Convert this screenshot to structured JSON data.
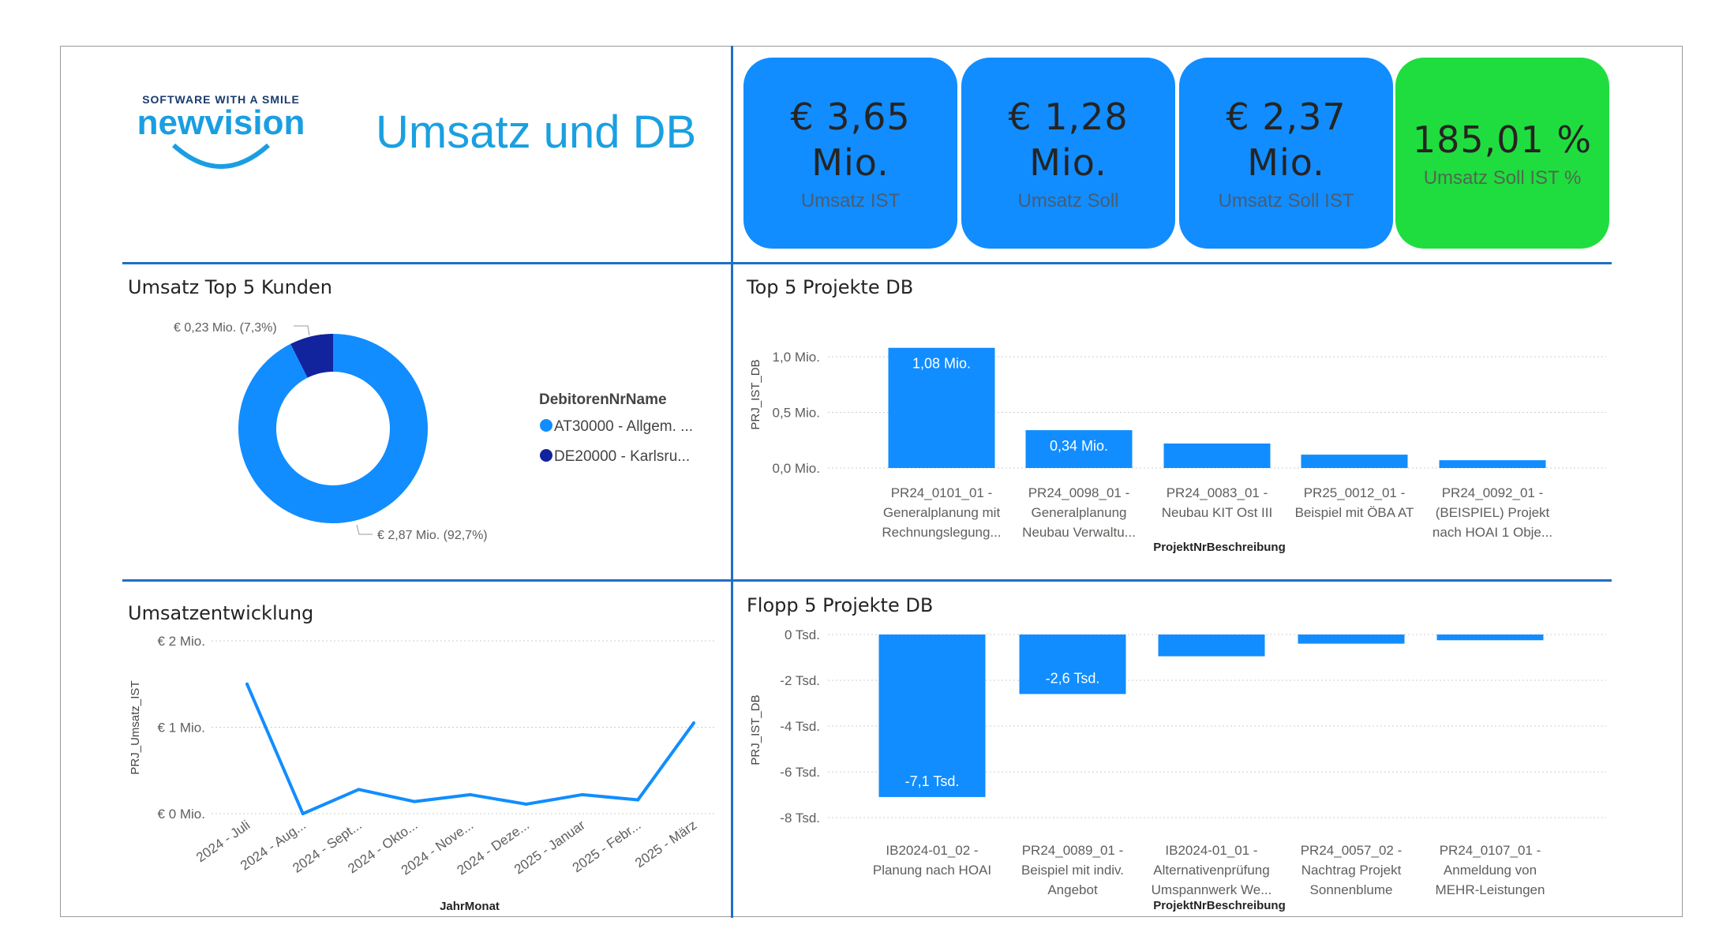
{
  "logo": {
    "tagline": "SOFTWARE WITH A SMILE",
    "brand": "newvision"
  },
  "header": {
    "title": "Umsatz und DB"
  },
  "kpis": [
    {
      "value_line1": "€ 3,65",
      "value_line2": "Mio.",
      "label": "Umsatz IST",
      "color": "#118dff"
    },
    {
      "value_line1": "€ 1,28",
      "value_line2": "Mio.",
      "label": "Umsatz Soll",
      "color": "#118dff"
    },
    {
      "value_line1": "€ 2,37",
      "value_line2": "Mio.",
      "label": "Umsatz Soll IST",
      "color": "#118dff"
    },
    {
      "value_line1": "185,01 %",
      "value_line2": "",
      "label": "Umsatz Soll IST %",
      "color": "#1fdd3e"
    }
  ],
  "chart_data": [
    {
      "type": "pie",
      "title": "Umsatz Top 5 Kunden",
      "legend_title": "DebitorenNrName",
      "legend_placement": "right",
      "slices": [
        {
          "name": "AT30000 - Allgem. ...",
          "value": 2.87,
          "label": "€ 2,87 Mio. (92,7%)",
          "color": "#118dff"
        },
        {
          "name": "DE20000 - Karlsru...",
          "value": 0.23,
          "label": "€ 0,23 Mio. (7,3%)",
          "color": "#12239e"
        }
      ]
    },
    {
      "type": "bar",
      "title": "Top 5 Projekte DB",
      "xlabel": "ProjektNrBeschreibung",
      "ylabel": "PRJ_IST_DB",
      "ylim": [
        0,
        1.0
      ],
      "yticks": [
        {
          "v": 1.0,
          "label": "1,0 Mio."
        },
        {
          "v": 0.5,
          "label": "0,5 Mio."
        },
        {
          "v": 0,
          "label": "0,0 Mio."
        }
      ],
      "categories": [
        [
          "PR24_0101_01 -",
          "Generalplanung mit",
          "Rechnungslegung..."
        ],
        [
          "PR24_0098_01 -",
          "Generalplanung",
          "Neubau Verwaltu..."
        ],
        [
          "PR24_0083_01 -",
          "Neubau KIT Ost III"
        ],
        [
          "PR25_0012_01 -",
          "Beispiel mit ÖBA AT"
        ],
        [
          "PR24_0092_01 -",
          "(BEISPIEL) Projekt",
          "nach HOAI 1 Obje..."
        ]
      ],
      "values": [
        1.08,
        0.34,
        0.22,
        0.12,
        0.07
      ],
      "data_labels": [
        "1,08 Mio.",
        "0,34 Mio.",
        "",
        "",
        ""
      ],
      "color": "#118dff",
      "grid": true
    },
    {
      "type": "bar",
      "title": "Flopp 5 Projekte DB",
      "xlabel": "ProjektNrBeschreibung",
      "ylabel": "PRJ_IST_DB",
      "ylim": [
        -8,
        0
      ],
      "yticks": [
        {
          "v": 0,
          "label": "0 Tsd."
        },
        {
          "v": -2,
          "label": "-2 Tsd."
        },
        {
          "v": -4,
          "label": "-4 Tsd."
        },
        {
          "v": -6,
          "label": "-6 Tsd."
        },
        {
          "v": -8,
          "label": "-8 Tsd."
        }
      ],
      "categories": [
        [
          "IB2024-01_02 -",
          "Planung nach HOAI"
        ],
        [
          "PR24_0089_01 -",
          "Beispiel mit indiv.",
          "Angebot"
        ],
        [
          "IB2024-01_01 -",
          "Alternativenprüfung",
          "Umspannwerk We..."
        ],
        [
          "PR24_0057_02 -",
          "Nachtrag Projekt",
          "Sonnenblume"
        ],
        [
          "PR24_0107_01 -",
          "Anmeldung von",
          "MEHR-Leistungen"
        ]
      ],
      "values": [
        -7.1,
        -2.6,
        -0.95,
        -0.4,
        -0.25
      ],
      "data_labels": [
        "-7,1 Tsd.",
        "-2,6 Tsd.",
        "",
        "",
        ""
      ],
      "color": "#118dff",
      "grid": true
    },
    {
      "type": "line",
      "title": "Umsatzentwicklung",
      "xlabel": "JahrMonat",
      "ylabel": "PRJ_Umsatz_IST",
      "ylim": [
        0,
        2
      ],
      "yticks": [
        {
          "v": 2,
          "label": "€ 2 Mio."
        },
        {
          "v": 1,
          "label": "€ 1 Mio."
        },
        {
          "v": 0,
          "label": "€ 0 Mio."
        }
      ],
      "categories": [
        "2024 - Juli",
        "2024 - Aug...",
        "2024 - Sept...",
        "2024 - Okto...",
        "2024 - Nove...",
        "2024 - Deze...",
        "2025 - Januar",
        "2025 - Febr...",
        "2025 - März"
      ],
      "values": [
        1.5,
        0.0,
        0.28,
        0.14,
        0.22,
        0.11,
        0.22,
        0.16,
        1.05
      ],
      "color": "#118dff",
      "grid": true
    }
  ]
}
